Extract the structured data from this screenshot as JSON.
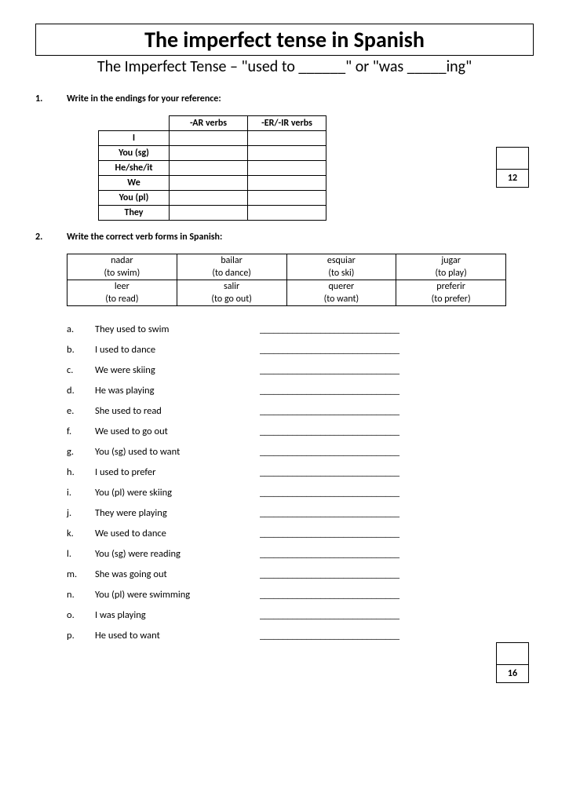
{
  "title": "The imperfect tense in Spanish",
  "subtitle": "The Imperfect Tense – \"used to ______\" or \"was _____ing\"",
  "section1": {
    "num": "1.",
    "prompt": "Write in the endings for your reference:",
    "headers": {
      "ar": "-AR verbs",
      "erir": "-ER/-IR verbs"
    },
    "pronouns": [
      "I",
      "You (sg)",
      "He/she/it",
      "We",
      "You (pl)",
      "They"
    ],
    "score": "12"
  },
  "section2": {
    "num": "2.",
    "prompt": "Write the correct verb forms in Spanish:",
    "verbs": [
      [
        {
          "es": "nadar",
          "en": "(to swim)"
        },
        {
          "es": "bailar",
          "en": "(to dance)"
        },
        {
          "es": "esquiar",
          "en": "(to ski)"
        },
        {
          "es": "jugar",
          "en": "(to play)"
        }
      ],
      [
        {
          "es": "leer",
          "en": "(to read)"
        },
        {
          "es": "salir",
          "en": "(to go out)"
        },
        {
          "es": "querer",
          "en": "(to want)"
        },
        {
          "es": "preferir",
          "en": "(to prefer)"
        }
      ]
    ],
    "questions": [
      {
        "l": "a.",
        "t": "They used to swim"
      },
      {
        "l": "b.",
        "t": "I used to dance"
      },
      {
        "l": "c.",
        "t": "We were skiing"
      },
      {
        "l": "d.",
        "t": "He was playing"
      },
      {
        "l": "e.",
        "t": "She used to read"
      },
      {
        "l": "f.",
        "t": "We used to go out"
      },
      {
        "l": "g.",
        "t": "You (sg) used to want"
      },
      {
        "l": "h.",
        "t": "I used to prefer"
      },
      {
        "l": "i.",
        "t": "You (pl) were skiing"
      },
      {
        "l": "j.",
        "t": "They were playing"
      },
      {
        "l": "k.",
        "t": "We used to dance"
      },
      {
        "l": "l.",
        "t": "You (sg) were reading"
      },
      {
        "l": "m.",
        "t": "She was going out"
      },
      {
        "l": "n.",
        "t": "You (pl) were swimming"
      },
      {
        "l": "o.",
        "t": "I was playing"
      },
      {
        "l": "p.",
        "t": "He used to want"
      }
    ],
    "blank_line": "______________________________",
    "score": "16"
  }
}
